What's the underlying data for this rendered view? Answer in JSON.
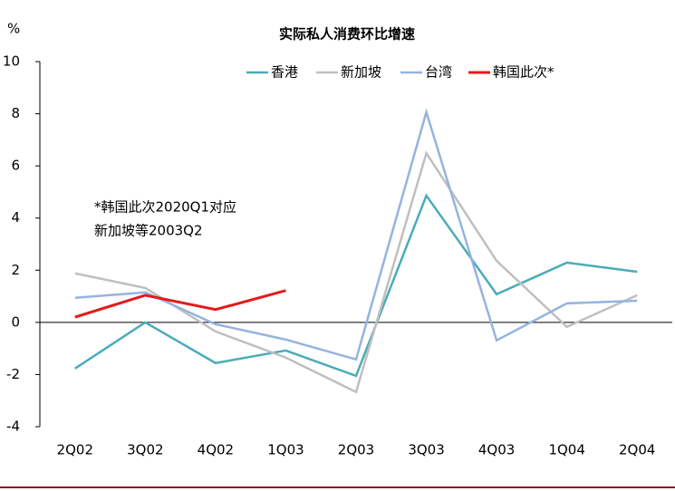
{
  "chart_data": {
    "type": "line",
    "title": "实际私人消费环比增速",
    "y_unit": "%",
    "categories": [
      "2Q02",
      "3Q02",
      "4Q02",
      "1Q03",
      "2Q03",
      "3Q03",
      "4Q03",
      "1Q04",
      "2Q04"
    ],
    "series": [
      {
        "name": "香港",
        "color": "#4bacb8",
        "values": [
          -1.77,
          0,
          -1.56,
          -1.08,
          -2.05,
          4.86,
          1.08,
          2.29,
          1.94
        ]
      },
      {
        "name": "新加坡",
        "color": "#bfbfbf",
        "values": [
          1.88,
          1.32,
          -0.35,
          -1.35,
          -2.67,
          6.49,
          2.36,
          -0.17,
          1.04
        ]
      },
      {
        "name": "台湾",
        "color": "#95b3e0",
        "values": [
          0.94,
          1.15,
          -0.07,
          -0.66,
          -1.42,
          8.06,
          -0.69,
          0.73,
          0.83
        ]
      },
      {
        "name": "韩国此次*",
        "color": "#e41a1c",
        "values": [
          0.2,
          1.04,
          0.49,
          1.22,
          null,
          null,
          null,
          null,
          null
        ]
      }
    ],
    "annotations": [
      "*韩国此次2020Q1对应",
      "新加坡等2003Q2"
    ],
    "ylim": [
      -4,
      10
    ],
    "yticks": [
      -4,
      -2,
      0,
      2,
      4,
      6,
      8,
      10
    ]
  }
}
